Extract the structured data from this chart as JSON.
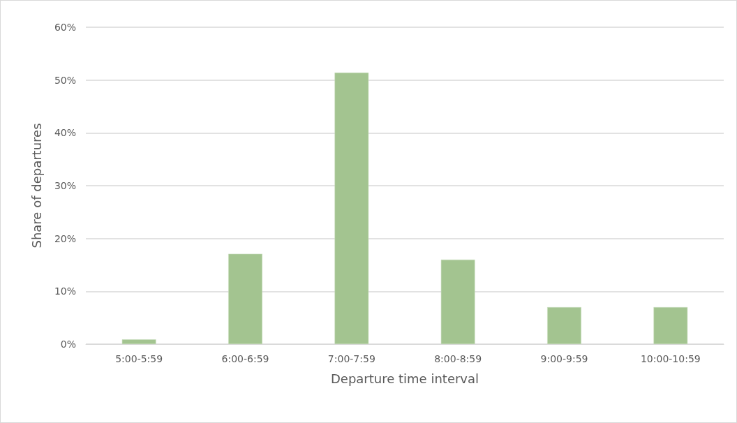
{
  "chart_data": {
    "type": "bar",
    "xlabel": "Departure time interval",
    "ylabel": "Share of departures",
    "categories": [
      "5:00-5:59",
      "6:00-6:59",
      "7:00-7:59",
      "8:00-8:59",
      "9:00-9:59",
      "10:00-10:59"
    ],
    "values": [
      0.9,
      17.1,
      51.4,
      16.0,
      7.0,
      7.0
    ],
    "color": "#a3c490",
    "ylim": [
      0,
      60
    ],
    "yticks": [
      {
        "value": 0,
        "label": "0%"
      },
      {
        "value": 10,
        "label": "10%"
      },
      {
        "value": 20,
        "label": "20%"
      },
      {
        "value": 30,
        "label": "30%"
      },
      {
        "value": 40,
        "label": "40%"
      },
      {
        "value": 50,
        "label": "50%"
      },
      {
        "value": 60,
        "label": "60%"
      }
    ],
    "grid": "y"
  }
}
